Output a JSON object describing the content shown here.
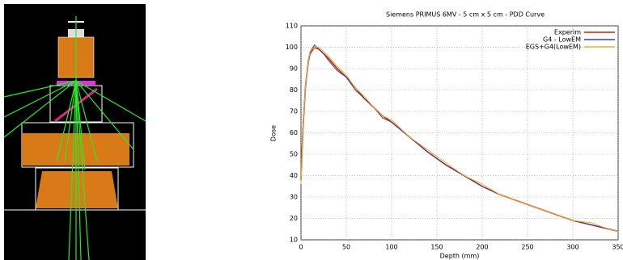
{
  "chart_data": {
    "type": "line",
    "title": "Siemens PRIMUS 6MV - 5 cm x 5 cm - PDD Curve",
    "x_label": "Depth (mm)",
    "y_label": "Dose",
    "x": [
      0,
      2,
      5,
      8,
      10,
      15,
      20,
      25,
      30,
      40,
      50,
      60,
      70,
      80,
      90,
      100,
      120,
      140,
      160,
      180,
      200,
      220,
      240,
      260,
      280,
      300,
      320,
      340,
      350
    ],
    "series": [
      {
        "name": "Experim",
        "color": "#cc2200",
        "values": [
          38,
          60,
          82,
          93,
          97,
          100,
          99,
          97,
          95,
          90,
          86,
          81,
          76,
          72,
          68,
          65,
          58,
          51,
          45,
          40,
          35,
          31,
          28,
          25,
          22,
          19,
          17,
          15,
          14
        ]
      },
      {
        "name": "G4 - LowEM",
        "color": "#3344aa",
        "values": [
          37,
          62,
          81,
          94,
          98,
          101,
          99,
          97,
          94,
          89,
          86,
          80,
          76,
          72,
          67,
          65,
          58,
          51,
          45,
          40,
          35,
          31,
          28,
          25,
          22,
          19,
          17,
          15,
          14
        ]
      },
      {
        "name": "EGS+G4(LowEM)",
        "color": "#f0b030",
        "values": [
          36,
          61,
          82,
          93,
          98,
          100,
          100,
          98,
          96,
          91,
          87,
          81,
          77,
          72,
          68,
          66,
          58,
          52,
          46,
          40,
          36,
          31,
          28,
          25,
          22,
          19,
          18,
          15,
          14
        ]
      }
    ],
    "xlim": [
      0,
      350
    ],
    "xticks": [
      0,
      50,
      100,
      150,
      200,
      250,
      300,
      350
    ],
    "ylim": [
      10,
      110
    ],
    "yticks": [
      10,
      20,
      30,
      40,
      50,
      60,
      70,
      80,
      90,
      100,
      110
    ],
    "grid": true,
    "legend": "top-right"
  }
}
